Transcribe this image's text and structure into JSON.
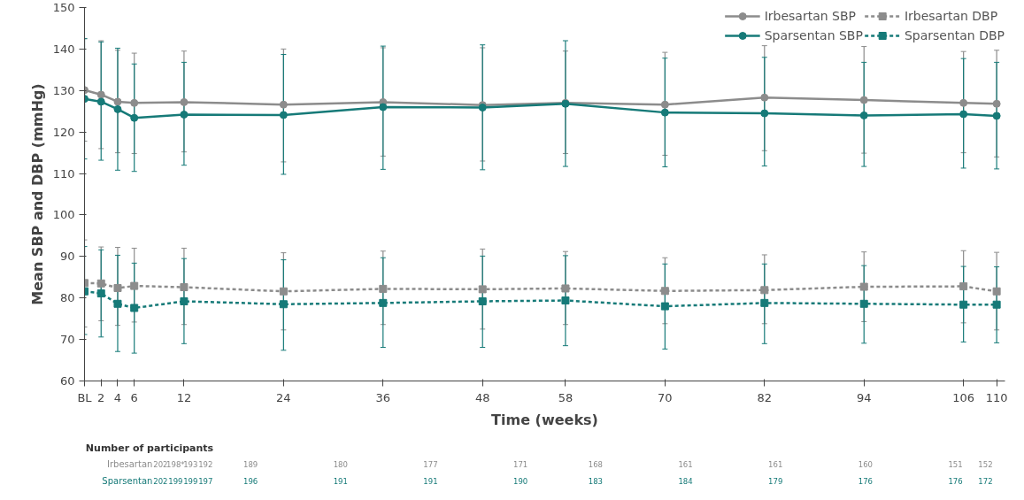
{
  "chart_data": {
    "type": "line",
    "xlabel": "Time (weeks)",
    "ylabel": "Mean SBP and DBP (mmHg)",
    "x": [
      0,
      2,
      4,
      6,
      12,
      24,
      36,
      48,
      58,
      70,
      82,
      94,
      106,
      110
    ],
    "xlim": [
      0,
      111
    ],
    "xticks": [
      {
        "value": 0,
        "label": "BL"
      },
      2,
      4,
      6,
      12,
      24,
      36,
      48,
      58,
      70,
      82,
      94,
      106,
      110
    ],
    "ylim": [
      60,
      150
    ],
    "yticks": [
      60,
      70,
      80,
      90,
      100,
      110,
      120,
      130,
      140,
      150
    ],
    "grid": false,
    "legend": "top",
    "series": [
      {
        "name": "Irbesartan SBP",
        "color": "#8c8c8c",
        "marker": "circle",
        "line_style": "solid",
        "values": [
          130.1,
          129,
          127.3,
          127,
          127.2,
          126.6,
          127.2,
          126.5,
          127,
          126.6,
          128.3,
          127.7,
          127,
          126.8
        ],
        "errors": [
          [
            117.8,
            142.5
          ],
          [
            116,
            142
          ],
          [
            115,
            139.7
          ],
          [
            114.8,
            139
          ],
          [
            115.2,
            139.5
          ],
          [
            112.8,
            140
          ],
          [
            114.2,
            140.3
          ],
          [
            113,
            140.3
          ],
          [
            114.8,
            139.5
          ],
          [
            114.4,
            139.2
          ],
          [
            115.5,
            140.8
          ],
          [
            114.9,
            140.6
          ],
          [
            115,
            139.4
          ],
          [
            114,
            139.7
          ]
        ]
      },
      {
        "name": "Sparsentan SBP",
        "color": "#167a78",
        "marker": "circle",
        "line_style": "solid",
        "values": [
          128,
          127.3,
          125.5,
          123.4,
          124.2,
          124.1,
          126,
          125.9,
          126.8,
          124.7,
          124.5,
          124,
          124.3,
          123.9
        ],
        "errors": [
          [
            113.5,
            142.5
          ],
          [
            113.2,
            141.7
          ],
          [
            110.8,
            140.2
          ],
          [
            110.5,
            136.4
          ],
          [
            112,
            136.8
          ],
          [
            109.8,
            138.7
          ],
          [
            111,
            140.7
          ],
          [
            110.9,
            141
          ],
          [
            111.7,
            142
          ],
          [
            111.6,
            137.8
          ],
          [
            111.8,
            138
          ],
          [
            111.7,
            136.8
          ],
          [
            111.3,
            137.7
          ],
          [
            111.1,
            136.8
          ]
        ]
      },
      {
        "name": "Irbesartan DBP",
        "color": "#8c8c8c",
        "marker": "square",
        "line_style": "dashed",
        "values": [
          83.6,
          83.5,
          82.4,
          82.9,
          82.6,
          81.6,
          82.2,
          82.1,
          82.3,
          81.7,
          81.9,
          82.7,
          82.8,
          81.6
        ],
        "errors": [
          [
            73,
            94
          ],
          [
            74.5,
            92.3
          ],
          [
            73.4,
            92.2
          ],
          [
            74.2,
            92
          ],
          [
            73.6,
            92
          ],
          [
            72.3,
            90.9
          ],
          [
            73.6,
            91.3
          ],
          [
            72.5,
            91.8
          ],
          [
            73.6,
            91.2
          ],
          [
            73.8,
            89.7
          ],
          [
            73.8,
            90.4
          ],
          [
            74.3,
            91.1
          ],
          [
            74,
            91.4
          ],
          [
            72.3,
            91
          ]
        ]
      },
      {
        "name": "Sparsentan DBP",
        "color": "#167a78",
        "marker": "square",
        "line_style": "dashed",
        "values": [
          81.6,
          81.1,
          78.6,
          77.6,
          79.2,
          78.5,
          78.8,
          79.2,
          79.4,
          78,
          78.8,
          78.6,
          78.4,
          78.4
        ],
        "errors": [
          [
            71.2,
            92.4
          ],
          [
            70.6,
            91.6
          ],
          [
            67.1,
            90.3
          ],
          [
            66.7,
            88.4
          ],
          [
            69,
            89.5
          ],
          [
            67.4,
            89.2
          ],
          [
            68.1,
            89.7
          ],
          [
            68.1,
            90.1
          ],
          [
            68.5,
            90.2
          ],
          [
            67.7,
            88.2
          ],
          [
            69,
            88.2
          ],
          [
            69.1,
            87.8
          ],
          [
            69.4,
            87.6
          ],
          [
            69.2,
            87.5
          ]
        ]
      }
    ],
    "annotations": [
      "Number of participants",
      "Irbesartan",
      "Sparsentan",
      "202",
      "198*",
      "193",
      "192",
      "189",
      "180",
      "177",
      "171",
      "168",
      "161",
      "161",
      "160",
      "151",
      "152",
      "202",
      "199",
      "199",
      "197",
      "196",
      "191",
      "191",
      "190",
      "183",
      "184",
      "179",
      "176",
      "176",
      "172"
    ]
  }
}
